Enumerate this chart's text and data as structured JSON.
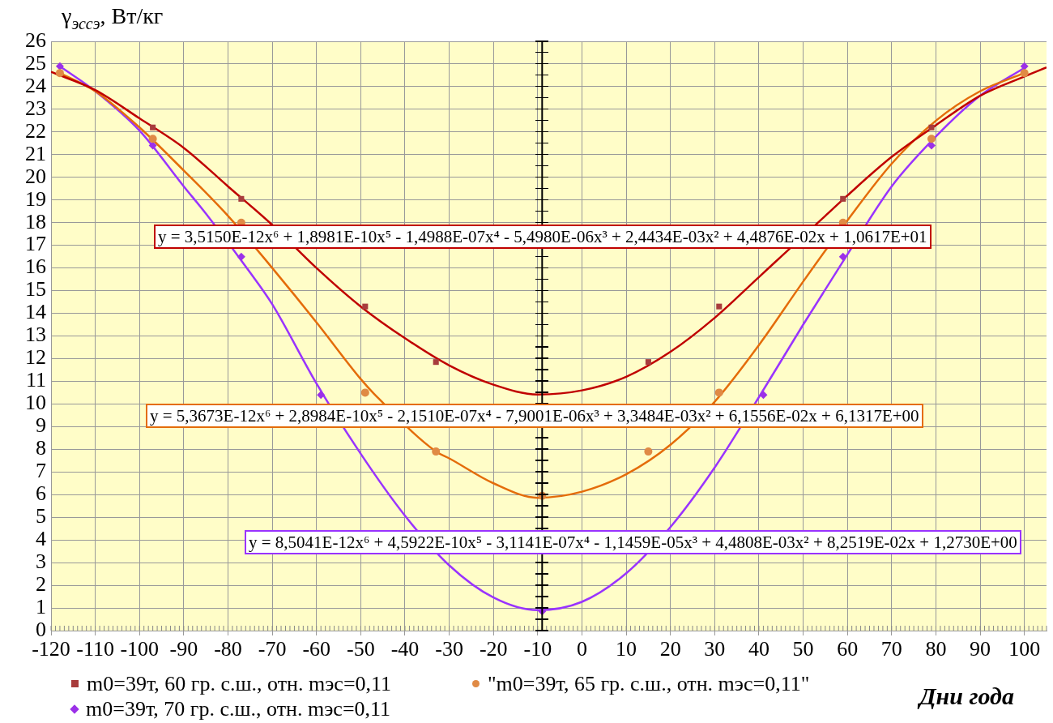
{
  "chart_data": {
    "type": "scatter",
    "xlabel": "Дни года",
    "ylabel": "γ$_{эссэ}$, Вт/кг",
    "xlim": [
      -120,
      105
    ],
    "xticks": [
      -120,
      -110,
      -100,
      -90,
      -80,
      -70,
      -60,
      -50,
      -40,
      -30,
      -20,
      -10,
      0,
      10,
      20,
      30,
      40,
      50,
      60,
      70,
      80,
      90,
      100
    ],
    "ylim": [
      0,
      26
    ],
    "yticks": [
      0,
      1,
      2,
      3,
      4,
      5,
      6,
      7,
      8,
      9,
      10,
      11,
      12,
      13,
      14,
      15,
      16,
      17,
      18,
      19,
      20,
      21,
      22,
      23,
      24,
      25,
      26
    ],
    "grid": true,
    "legend": "bottom",
    "ref_lines": [
      {
        "axis": "x",
        "value": -9,
        "color": "#000000"
      }
    ],
    "series": [
      {
        "name": "m0=39т, 60 гр. с.ш., отн. mэс=0,11",
        "type": "scatter",
        "marker": "square",
        "color": "#a83c3c",
        "x": [
          -97,
          -77,
          -49,
          -33,
          15,
          31,
          59,
          79
        ],
        "values": [
          22.2,
          19.05,
          14.3,
          11.85,
          11.85,
          14.3,
          19.05,
          22.2
        ]
      },
      {
        "name": "\"m0=39т, 65 гр. с.ш., отн. mэс=0,11\"",
        "type": "scatter",
        "marker": "circle",
        "color": "#e08a45",
        "x": [
          -118,
          -97,
          -77,
          -49,
          -33,
          -9,
          15,
          31,
          59,
          79,
          100
        ],
        "values": [
          24.6,
          21.7,
          18.0,
          10.5,
          7.9,
          5.95,
          7.9,
          10.5,
          18.0,
          21.7,
          24.6
        ]
      },
      {
        "name": "m0=39т, 70 гр. с.ш., отн. mэс=0,11",
        "type": "scatter",
        "marker": "diamond",
        "color": "#9b30e8",
        "x": [
          -118,
          -97,
          -77,
          -59,
          -9,
          41,
          59,
          79,
          100
        ],
        "values": [
          24.9,
          21.4,
          16.5,
          10.4,
          0.85,
          10.4,
          16.5,
          21.4,
          24.9
        ]
      },
      {
        "type": "line",
        "marker": "none",
        "color": "#c00000",
        "x": [
          -120,
          -110,
          -100,
          -90,
          -80,
          -70,
          -60,
          -50,
          -40,
          -30,
          -20,
          -10,
          0,
          10,
          20,
          30,
          40,
          45,
          55,
          60,
          70,
          80,
          90,
          100,
          105
        ],
        "values": [
          24.65,
          23.85,
          22.6,
          21.3,
          19.6,
          17.9,
          16.0,
          14.3,
          12.9,
          11.7,
          10.85,
          10.42,
          10.6,
          11.2,
          12.3,
          13.8,
          15.6,
          16.5,
          18.3,
          19.2,
          20.9,
          22.3,
          23.6,
          24.45,
          24.85
        ]
      },
      {
        "type": "line",
        "marker": "none",
        "color": "#e46c0a",
        "x": [
          -118,
          -110,
          -100,
          -90,
          -80,
          -70,
          -60,
          -50,
          -47,
          -33,
          -30,
          -20,
          -10,
          0,
          10,
          20,
          30,
          40,
          50,
          60,
          70,
          80,
          90,
          100
        ],
        "values": [
          24.6,
          23.8,
          22.2,
          20.3,
          18.3,
          16.0,
          13.6,
          11.1,
          10.45,
          7.9,
          7.6,
          6.5,
          5.86,
          6.13,
          6.9,
          8.2,
          10.1,
          12.6,
          15.4,
          18.1,
          20.6,
          22.5,
          23.8,
          24.6
        ]
      },
      {
        "type": "line",
        "marker": "none",
        "color": "#9933ff",
        "x": [
          -118,
          -110,
          -100,
          -90,
          -85,
          -75,
          -70,
          -60,
          -50,
          -40,
          -30,
          -20,
          -10,
          0,
          10,
          20,
          30,
          40,
          50,
          60,
          70,
          80,
          90,
          100
        ],
        "values": [
          24.9,
          23.8,
          22.06,
          19.6,
          18.4,
          15.8,
          14.4,
          10.9,
          7.8,
          5.07,
          2.88,
          1.46,
          0.9,
          1.27,
          2.53,
          4.57,
          7.2,
          10.3,
          13.5,
          16.6,
          19.6,
          21.8,
          23.6,
          24.83
        ]
      }
    ],
    "annotations": [
      "y = 3,5150E-12x⁶ + 1,8981E-10x⁵ - 1,4988E-07x⁴ - 5,4980E-06x³ + 2,4434E-03x² + 4,4876E-02x + 1,0617E+01",
      "y = 5,3673E-12x⁶ + 2,8984E-10x⁵ - 2,1510E-07x⁴ - 7,9001E-06x³ + 3,3484E-03x² + 6,1556E-02x + 6,1317E+00",
      "y = 8,5041E-12x⁶ + 4,5922E-10x⁵ - 3,1141E-07x⁴ - 1,1459E-05x³ + 4,4808E-03x² + 8,2519E-02x + 1,2730E+00"
    ]
  }
}
